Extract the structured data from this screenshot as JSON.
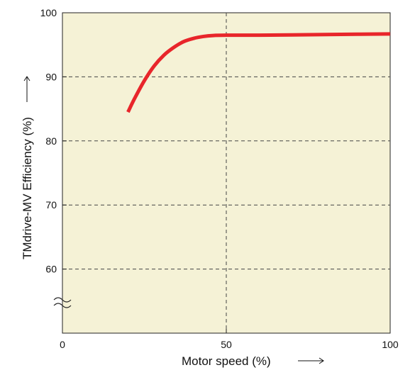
{
  "chart_data": {
    "type": "line",
    "xlabel": "Motor speed (%)",
    "ylabel": "TMdrive-MV Efficiency (%)",
    "xlim": [
      0,
      100
    ],
    "ylim": [
      50,
      100
    ],
    "x_ticks": [
      0,
      50,
      100
    ],
    "y_ticks": [
      60,
      70,
      80,
      90,
      100
    ],
    "grid": "dashed at y=60,70,80,90 and x=50",
    "axis_break": "y-axis break between 50 and 60",
    "series": [
      {
        "color": "#e8262b",
        "x": [
          20,
          22,
          25,
          28,
          31,
          34,
          37,
          40,
          43,
          46,
          50,
          55,
          60,
          70,
          80,
          90,
          100
        ],
        "y": [
          84.5,
          86.6,
          89.4,
          91.7,
          93.4,
          94.6,
          95.5,
          96.0,
          96.3,
          96.45,
          96.5,
          96.5,
          96.5,
          96.55,
          96.6,
          96.65,
          96.7
        ]
      }
    ],
    "background_color": "#f5f2d6",
    "line_color": "#e8262b"
  }
}
